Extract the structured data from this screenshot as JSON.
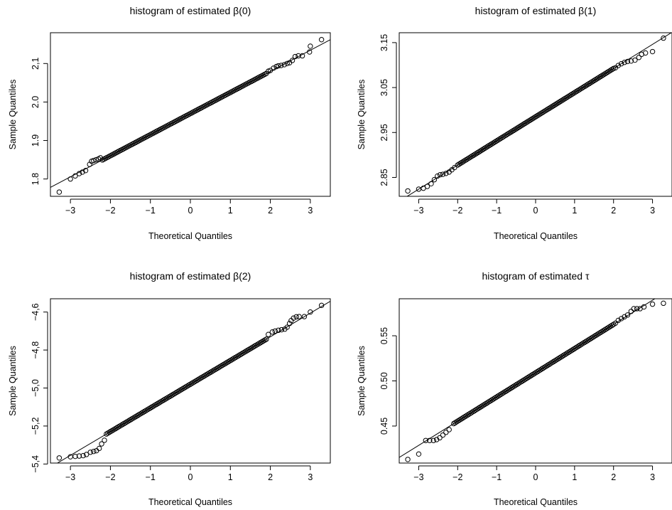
{
  "chart_data": [
    {
      "type": "scatter",
      "title": "histogram of estimated β(0)",
      "xlabel": "Theoretical Quantiles",
      "ylabel": "Sample Quantiles",
      "xlim": [
        -3.5,
        3.5
      ],
      "ylim": [
        1.755,
        2.18
      ],
      "xticks": [
        -3,
        -2,
        -1,
        0,
        1,
        2,
        3
      ],
      "xtick_labels": [
        "−3",
        "−2",
        "−1",
        "0",
        "1",
        "2",
        "3"
      ],
      "yticks": [
        1.8,
        1.9,
        2.0,
        2.1
      ],
      "ytick_labels": [
        "1.8",
        "1.9",
        "2.0",
        "2,1"
      ],
      "reference_line": {
        "intercept": 1.97,
        "slope": 0.0548
      },
      "series": [
        {
          "core": {
            "from": -2.2,
            "to": 1.9,
            "slope": 0.0548,
            "intercept": 1.97,
            "count": 110
          },
          "points": [
            [
              -3.28,
              1.766
            ],
            [
              -3.0,
              1.8
            ],
            [
              -2.88,
              1.808
            ],
            [
              -2.78,
              1.814
            ],
            [
              -2.7,
              1.818
            ],
            [
              -2.62,
              1.822
            ],
            [
              -2.52,
              1.838
            ],
            [
              -2.47,
              1.846
            ],
            [
              -2.42,
              1.848
            ],
            [
              -2.36,
              1.85
            ],
            [
              -2.3,
              1.852
            ],
            [
              -2.25,
              1.855
            ],
            [
              1.95,
              2.08
            ],
            [
              2.0,
              2.082
            ],
            [
              2.08,
              2.088
            ],
            [
              2.15,
              2.092
            ],
            [
              2.2,
              2.094
            ],
            [
              2.27,
              2.095
            ],
            [
              2.35,
              2.097
            ],
            [
              2.42,
              2.1
            ],
            [
              2.48,
              2.102
            ],
            [
              2.55,
              2.108
            ],
            [
              2.62,
              2.118
            ],
            [
              2.7,
              2.12
            ],
            [
              2.8,
              2.12
            ],
            [
              2.98,
              2.13
            ],
            [
              3.0,
              2.145
            ],
            [
              3.28,
              2.162
            ]
          ]
        }
      ]
    },
    {
      "type": "scatter",
      "title": "histogram of estimated β(1)",
      "xlabel": "Theoretical Quantiles",
      "ylabel": "Sample Quantiles",
      "xlim": [
        -3.5,
        3.5
      ],
      "ylim": [
        2.808,
        3.172
      ],
      "xticks": [
        -3,
        -2,
        -1,
        0,
        1,
        2,
        3
      ],
      "xtick_labels": [
        "−3",
        "−2",
        "−1",
        "0",
        "1",
        "2",
        "3"
      ],
      "yticks": [
        2.85,
        2.95,
        3.05,
        3.15
      ],
      "ytick_labels": [
        "2.85",
        "2.95",
        "3.05",
        "3.15"
      ],
      "reference_line": {
        "intercept": 2.985,
        "slope": 0.0537
      },
      "series": [
        {
          "core": {
            "from": -2.0,
            "to": 2.0,
            "slope": 0.0537,
            "intercept": 2.985,
            "count": 110
          },
          "points": [
            [
              -3.28,
              2.82
            ],
            [
              -3.0,
              2.824
            ],
            [
              -2.88,
              2.826
            ],
            [
              -2.78,
              2.83
            ],
            [
              -2.68,
              2.836
            ],
            [
              -2.6,
              2.845
            ],
            [
              -2.52,
              2.853
            ],
            [
              -2.45,
              2.856
            ],
            [
              -2.38,
              2.857
            ],
            [
              -2.3,
              2.859
            ],
            [
              -2.22,
              2.862
            ],
            [
              -2.15,
              2.867
            ],
            [
              -2.08,
              2.872
            ],
            [
              2.05,
              3.094
            ],
            [
              2.12,
              3.099
            ],
            [
              2.2,
              3.103
            ],
            [
              2.28,
              3.106
            ],
            [
              2.36,
              3.108
            ],
            [
              2.45,
              3.109
            ],
            [
              2.55,
              3.111
            ],
            [
              2.65,
              3.117
            ],
            [
              2.72,
              3.124
            ],
            [
              2.82,
              3.127
            ],
            [
              3.0,
              3.13
            ],
            [
              3.28,
              3.16
            ]
          ]
        }
      ]
    },
    {
      "type": "scatter",
      "title": "histogram of estimated β(2)",
      "xlabel": "Theoretical Quantiles",
      "ylabel": "Sample Quantiles",
      "xlim": [
        -3.5,
        3.5
      ],
      "ylim": [
        -5.395,
        -4.53
      ],
      "xticks": [
        -3,
        -2,
        -1,
        0,
        1,
        2,
        3
      ],
      "xtick_labels": [
        "−3",
        "−2",
        "−1",
        "0",
        "1",
        "2",
        "3"
      ],
      "yticks": [
        -5.4,
        -5.2,
        -5.0,
        -4.8,
        -4.6
      ],
      "ytick_labels": [
        "−5,4",
        "−5,2",
        "−5,0",
        "−4,8",
        "−4,6"
      ],
      "reference_line": {
        "intercept": -4.98,
        "slope": 0.1248
      },
      "series": [
        {
          "core": {
            "from": -2.1,
            "to": 1.9,
            "slope": 0.1248,
            "intercept": -4.98,
            "count": 110
          },
          "points": [
            [
              -3.28,
              -5.368
            ],
            [
              -3.0,
              -5.362
            ],
            [
              -2.88,
              -5.36
            ],
            [
              -2.78,
              -5.358
            ],
            [
              -2.68,
              -5.356
            ],
            [
              -2.6,
              -5.35
            ],
            [
              -2.5,
              -5.338
            ],
            [
              -2.42,
              -5.334
            ],
            [
              -2.35,
              -5.33
            ],
            [
              -2.28,
              -5.318
            ],
            [
              -2.22,
              -5.294
            ],
            [
              -2.15,
              -5.275
            ],
            [
              1.95,
              -4.718
            ],
            [
              2.05,
              -4.705
            ],
            [
              2.12,
              -4.7
            ],
            [
              2.2,
              -4.696
            ],
            [
              2.28,
              -4.693
            ],
            [
              2.36,
              -4.69
            ],
            [
              2.42,
              -4.68
            ],
            [
              2.48,
              -4.66
            ],
            [
              2.52,
              -4.645
            ],
            [
              2.58,
              -4.632
            ],
            [
              2.65,
              -4.625
            ],
            [
              2.72,
              -4.624
            ],
            [
              2.85,
              -4.624
            ],
            [
              3.0,
              -4.6
            ],
            [
              3.28,
              -4.565
            ]
          ]
        }
      ]
    },
    {
      "type": "scatter",
      "title": "histogram of estimated τ",
      "xlabel": "Theoretical Quantiles",
      "ylabel": "Sample Quantiles",
      "xlim": [
        -3.5,
        3.5
      ],
      "ylim": [
        0.409,
        0.591
      ],
      "xticks": [
        -3,
        -2,
        -1,
        0,
        1,
        2,
        3
      ],
      "xtick_labels": [
        "−3",
        "−2",
        "−1",
        "0",
        "1",
        "2",
        "3"
      ],
      "yticks": [
        0.45,
        0.5,
        0.55
      ],
      "ytick_labels": [
        "0.45",
        "0.50",
        "0.55"
      ],
      "reference_line": {
        "intercept": 0.509,
        "slope": 0.0268
      },
      "series": [
        {
          "core": {
            "from": -2.1,
            "to": 2.0,
            "slope": 0.0268,
            "intercept": 0.509,
            "count": 110
          },
          "points": [
            [
              -3.28,
              0.413
            ],
            [
              -3.0,
              0.419
            ],
            [
              -2.82,
              0.434
            ],
            [
              -2.72,
              0.434
            ],
            [
              -2.62,
              0.434
            ],
            [
              -2.54,
              0.435
            ],
            [
              -2.46,
              0.437
            ],
            [
              -2.38,
              0.44
            ],
            [
              -2.3,
              0.443
            ],
            [
              -2.22,
              0.446
            ],
            [
              2.05,
              0.564
            ],
            [
              2.12,
              0.567
            ],
            [
              2.2,
              0.569
            ],
            [
              2.28,
              0.571
            ],
            [
              2.36,
              0.573
            ],
            [
              2.45,
              0.577
            ],
            [
              2.52,
              0.58
            ],
            [
              2.6,
              0.58
            ],
            [
              2.68,
              0.58
            ],
            [
              2.78,
              0.582
            ],
            [
              3.0,
              0.585
            ],
            [
              3.28,
              0.586
            ]
          ]
        }
      ]
    }
  ]
}
